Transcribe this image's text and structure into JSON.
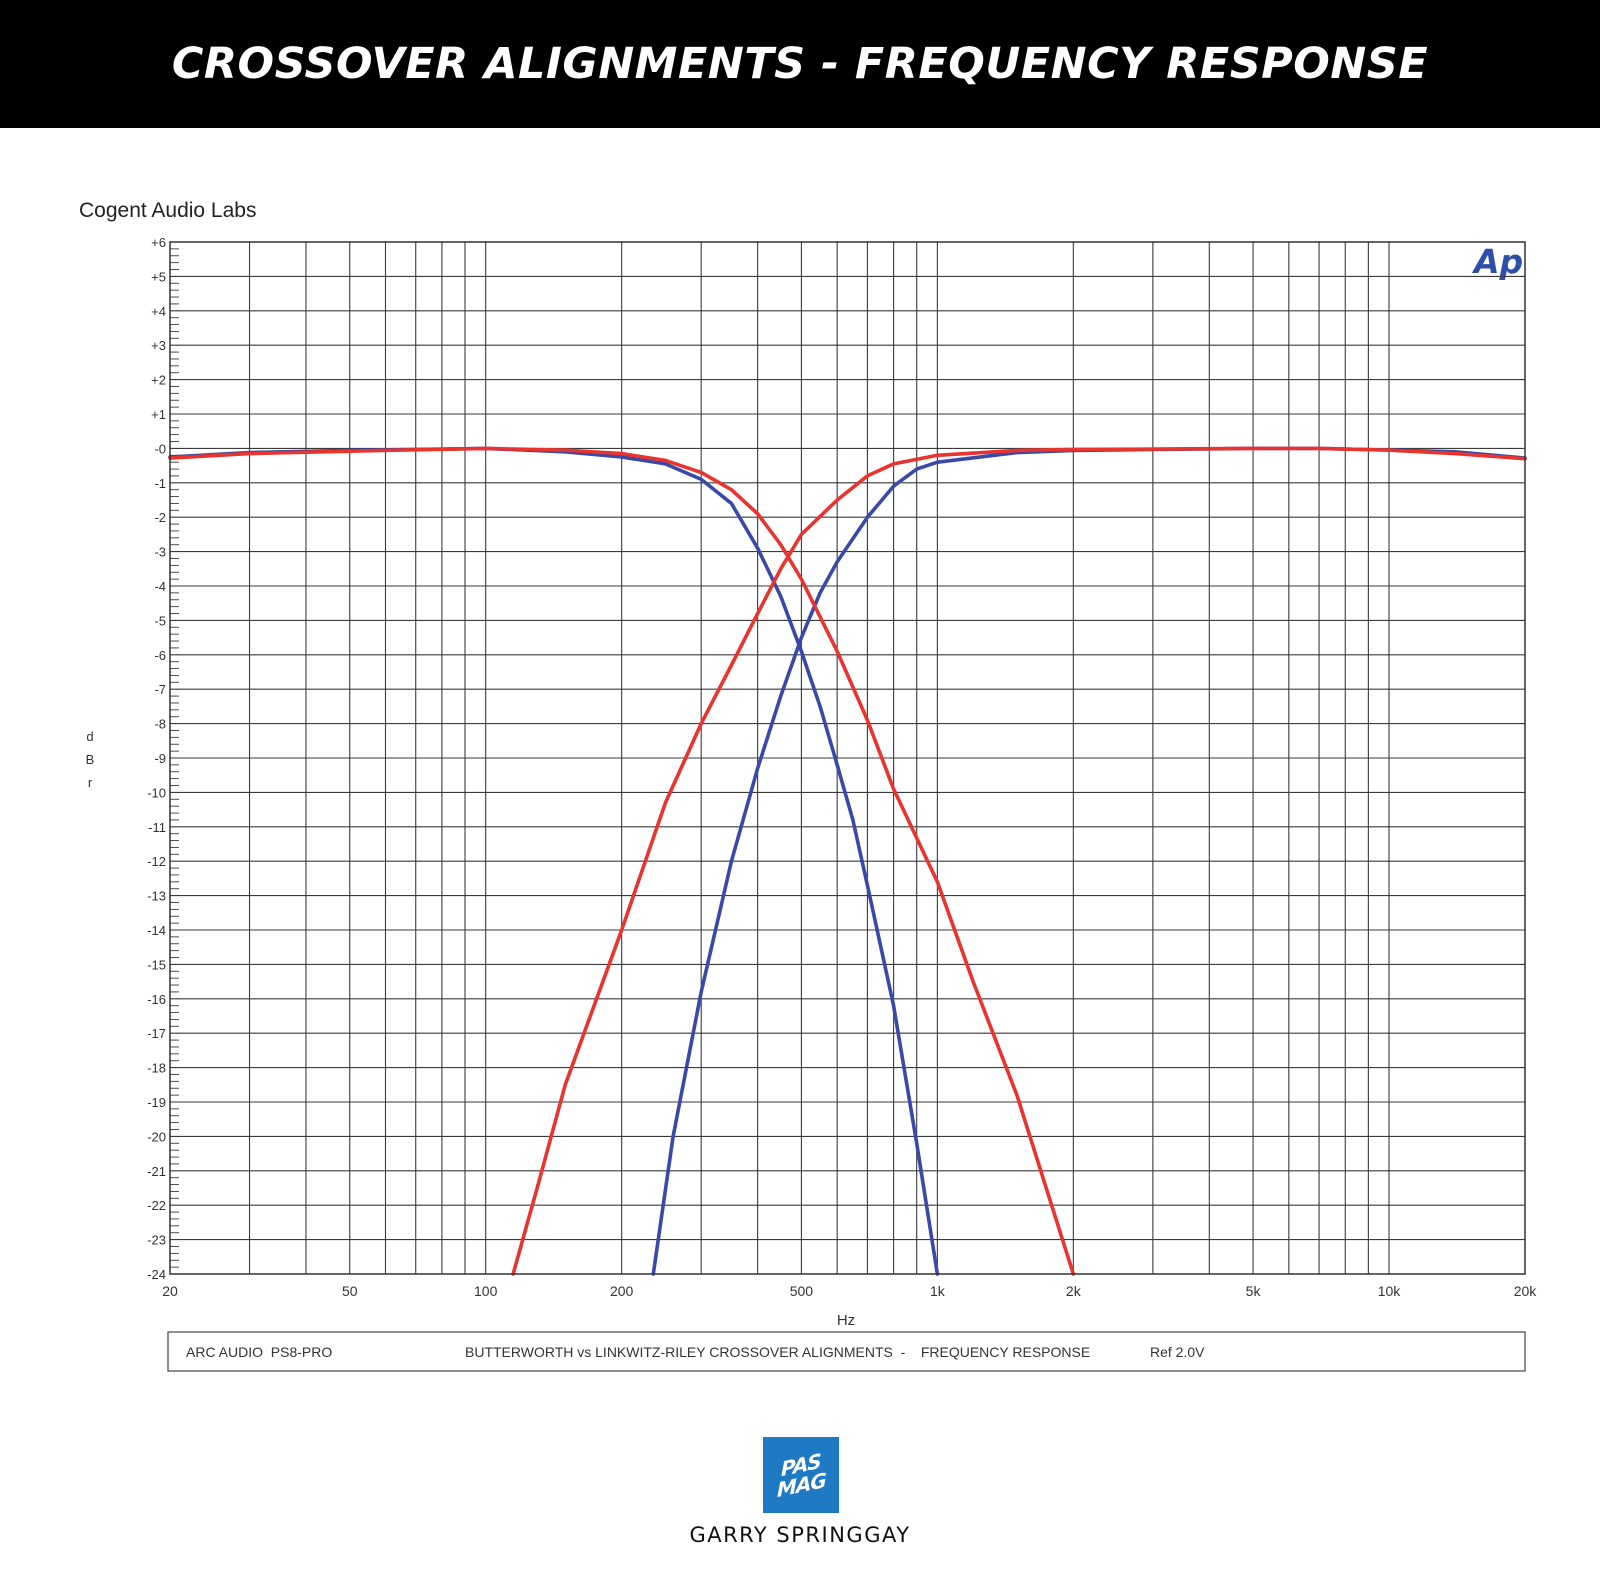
{
  "banner": {
    "title": "CROSSOVER ALIGNMENTS - FREQUENCY RESPONSE"
  },
  "lab_name": "Cogent Audio Labs",
  "ap_logo": "Ap",
  "footer": {
    "left": "ARC AUDIO  PS8-PRO",
    "center": "BUTTERWORTH vs LINKWITZ-RILEY CROSSOVER ALIGNMENTS  -    FREQUENCY RESPONSE",
    "right": "Ref 2.0V"
  },
  "logo": {
    "line1": "PAS",
    "line2": "MAG"
  },
  "credit": "GARRY SPRINGGAY",
  "chart_data": {
    "type": "line",
    "xlabel": "Hz",
    "ylabel": "dBr",
    "x_scale": "log",
    "xlim": [
      20,
      20000
    ],
    "ylim": [
      -24,
      6
    ],
    "grid": true,
    "y_tick_labels": [
      "+6",
      "+5",
      "+4",
      "+3",
      "+2",
      "+1",
      "-0",
      "-1",
      "-2",
      "-3",
      "-4",
      "-5",
      "-6",
      "-7",
      "-8",
      "-9",
      "-10",
      "-11",
      "-12",
      "-13",
      "-14",
      "-15",
      "-16",
      "-17",
      "-18",
      "-19",
      "-20",
      "-21",
      "-22",
      "-23",
      "-24"
    ],
    "x_ticks": [
      {
        "value": 20,
        "label": "20"
      },
      {
        "value": 50,
        "label": "50"
      },
      {
        "value": 100,
        "label": "100"
      },
      {
        "value": 200,
        "label": "200"
      },
      {
        "value": 500,
        "label": "500"
      },
      {
        "value": 1000,
        "label": "1k"
      },
      {
        "value": 2000,
        "label": "2k"
      },
      {
        "value": 5000,
        "label": "5k"
      },
      {
        "value": 10000,
        "label": "10k"
      },
      {
        "value": 20000,
        "label": "20k"
      }
    ],
    "series": [
      {
        "color": "#3a48a8",
        "points": [
          [
            20,
            -0.25
          ],
          [
            30,
            -0.12
          ],
          [
            50,
            -0.06
          ],
          [
            70,
            -0.03
          ],
          [
            100,
            0
          ],
          [
            150,
            -0.1
          ],
          [
            200,
            -0.25
          ],
          [
            250,
            -0.45
          ],
          [
            300,
            -0.9
          ],
          [
            350,
            -1.6
          ],
          [
            400,
            -2.9
          ],
          [
            450,
            -4.3
          ],
          [
            500,
            -5.9
          ],
          [
            550,
            -7.5
          ],
          [
            600,
            -9.2
          ],
          [
            650,
            -10.8
          ],
          [
            700,
            -12.7
          ],
          [
            800,
            -16.2
          ],
          [
            900,
            -20.2
          ],
          [
            1000,
            -24
          ]
        ]
      },
      {
        "color": "#3a48a8",
        "points": [
          [
            235,
            -24
          ],
          [
            260,
            -20
          ],
          [
            300,
            -15.8
          ],
          [
            350,
            -12
          ],
          [
            400,
            -9.3
          ],
          [
            450,
            -7.2
          ],
          [
            500,
            -5.5
          ],
          [
            550,
            -4.2
          ],
          [
            600,
            -3.3
          ],
          [
            700,
            -2
          ],
          [
            800,
            -1.1
          ],
          [
            900,
            -0.6
          ],
          [
            1000,
            -0.4
          ],
          [
            1500,
            -0.12
          ],
          [
            2000,
            -0.06
          ],
          [
            3000,
            -0.03
          ],
          [
            5000,
            0
          ],
          [
            7000,
            0
          ],
          [
            10000,
            -0.05
          ],
          [
            14000,
            -0.1
          ],
          [
            20000,
            -0.28
          ]
        ]
      },
      {
        "color": "#e8332e",
        "points": [
          [
            20,
            -0.28
          ],
          [
            30,
            -0.15
          ],
          [
            50,
            -0.08
          ],
          [
            70,
            -0.04
          ],
          [
            100,
            0
          ],
          [
            150,
            -0.05
          ],
          [
            200,
            -0.15
          ],
          [
            250,
            -0.35
          ],
          [
            300,
            -0.7
          ],
          [
            350,
            -1.2
          ],
          [
            400,
            -1.9
          ],
          [
            450,
            -2.8
          ],
          [
            500,
            -3.8
          ],
          [
            600,
            -5.9
          ],
          [
            700,
            -7.9
          ],
          [
            800,
            -9.9
          ],
          [
            1000,
            -12.6
          ],
          [
            1200,
            -15.5
          ],
          [
            1500,
            -18.8
          ],
          [
            2000,
            -24
          ]
        ]
      },
      {
        "color": "#e8332e",
        "points": [
          [
            115,
            -24
          ],
          [
            130,
            -21.5
          ],
          [
            150,
            -18.5
          ],
          [
            200,
            -14
          ],
          [
            250,
            -10.3
          ],
          [
            300,
            -8
          ],
          [
            350,
            -6.3
          ],
          [
            400,
            -4.8
          ],
          [
            450,
            -3.5
          ],
          [
            500,
            -2.5
          ],
          [
            600,
            -1.5
          ],
          [
            700,
            -0.8
          ],
          [
            800,
            -0.45
          ],
          [
            1000,
            -0.2
          ],
          [
            1500,
            -0.06
          ],
          [
            2000,
            -0.03
          ],
          [
            3000,
            -0.02
          ],
          [
            5000,
            0
          ],
          [
            7000,
            0
          ],
          [
            10000,
            -0.05
          ],
          [
            14000,
            -0.15
          ],
          [
            20000,
            -0.3
          ]
        ]
      }
    ]
  }
}
